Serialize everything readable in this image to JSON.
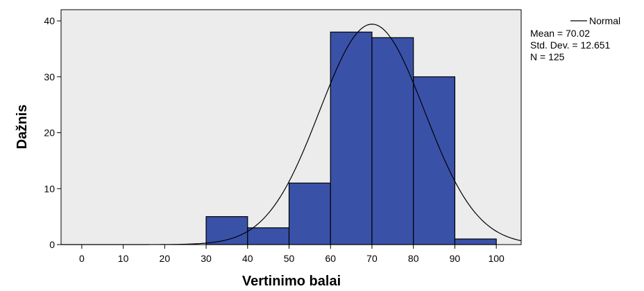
{
  "chart_data": {
    "type": "histogram",
    "xlabel": "Vertinimo balai",
    "ylabel": "Dažnis",
    "xlim": [
      -5,
      106
    ],
    "ylim": [
      0,
      42
    ],
    "x_ticks": [
      "0",
      "10",
      "20",
      "30",
      "40",
      "50",
      "60",
      "70",
      "80",
      "90",
      "100"
    ],
    "y_ticks": [
      "0",
      "10",
      "20",
      "30",
      "40"
    ],
    "bins": [
      {
        "from": 30,
        "to": 40,
        "count": 5
      },
      {
        "from": 40,
        "to": 50,
        "count": 3
      },
      {
        "from": 50,
        "to": 60,
        "count": 11
      },
      {
        "from": 60,
        "to": 70,
        "count": 38
      },
      {
        "from": 70,
        "to": 80,
        "count": 37
      },
      {
        "from": 80,
        "to": 90,
        "count": 30
      },
      {
        "from": 90,
        "to": 100,
        "count": 1
      }
    ],
    "normal_curve": {
      "mean": 70.02,
      "std_dev": 12.651,
      "n": 125,
      "bin_width": 10
    },
    "legend": {
      "curve_label": "Normal",
      "mean_text": "Mean = 70.02",
      "std_text": "Std. Dev. = 12.651",
      "n_text": "N = 125"
    },
    "colors": {
      "bar_fill": "#3a51a8",
      "bar_stroke": "#000000",
      "plot_background": "#ececec",
      "curve": "#000000"
    },
    "grid": false
  }
}
